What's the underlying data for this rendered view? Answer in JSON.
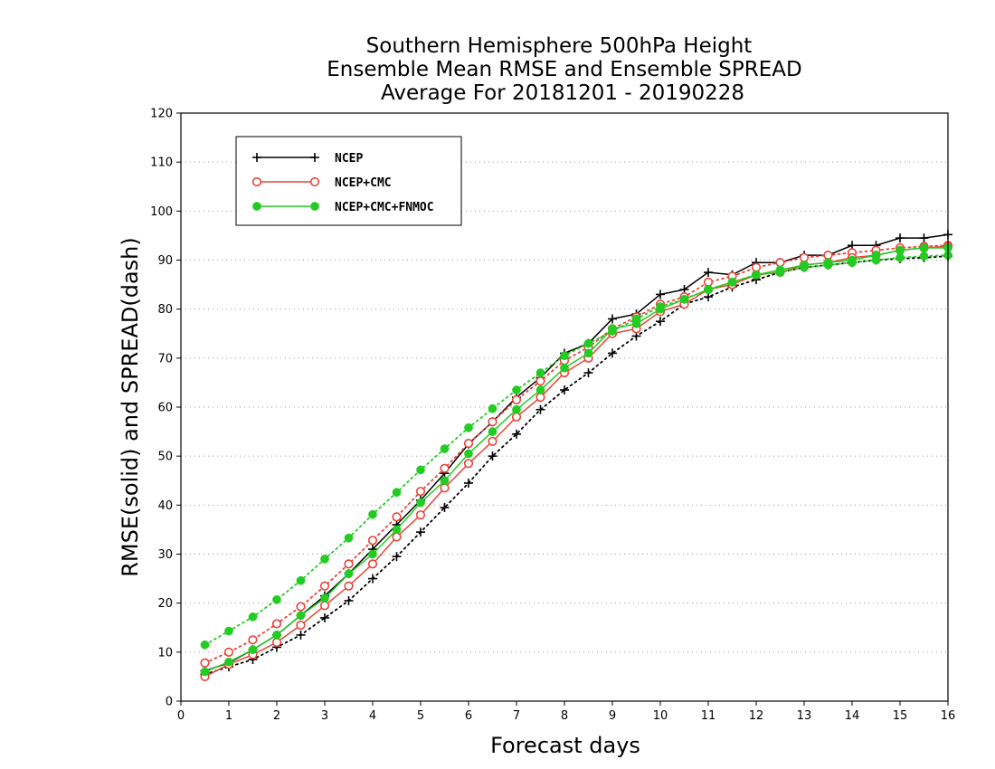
{
  "chart_data": {
    "type": "line",
    "title": [
      "Southern Hemisphere 500hPa Height",
      "Ensemble Mean RMSE and Ensemble SPREAD",
      "Average For 20181201 - 20190228"
    ],
    "xlabel": "Forecast days",
    "ylabel": "RMSE(solid) and SPREAD(dash)",
    "xlim": [
      0,
      16
    ],
    "ylim": [
      0,
      120
    ],
    "xticks": [
      "0",
      "1",
      "2",
      "3",
      "4",
      "5",
      "6",
      "7",
      "8",
      "9",
      "10",
      "11",
      "12",
      "13",
      "14",
      "15",
      "16"
    ],
    "yticks": [
      "0",
      "10",
      "20",
      "30",
      "40",
      "50",
      "60",
      "70",
      "80",
      "90",
      "100",
      "110",
      "120"
    ],
    "grid": true,
    "legend_position": "top-left",
    "x": [
      0.5,
      1,
      1.5,
      2,
      2.5,
      3,
      3.5,
      4,
      4.5,
      5,
      5.5,
      6,
      6.5,
      7,
      7.5,
      8,
      8.5,
      9,
      9.5,
      10,
      10.5,
      11,
      11.5,
      12,
      12.5,
      13,
      13.5,
      14,
      14.5,
      15,
      15.5,
      16
    ],
    "series": [
      {
        "name": "NCEP",
        "color": "#000000",
        "marker": "plus",
        "rmse": [
          6.2,
          7.8,
          10.5,
          13.5,
          17.5,
          21.5,
          26.0,
          31.0,
          36.0,
          41.0,
          46.5,
          52.5,
          57.0,
          62.0,
          66.0,
          71.0,
          73.0,
          78.0,
          79.0,
          83.0,
          84.0,
          87.5,
          87.0,
          89.5,
          89.5,
          91.0,
          91.0,
          93.0,
          93.0,
          94.5,
          94.5,
          95.2
        ],
        "spread": [
          5.5,
          7.0,
          8.5,
          11.0,
          13.5,
          17.0,
          20.5,
          25.0,
          29.5,
          34.5,
          39.5,
          44.5,
          50.0,
          54.5,
          59.5,
          63.5,
          67.0,
          71.0,
          74.5,
          77.5,
          81.0,
          82.5,
          84.5,
          86.0,
          87.5,
          88.5,
          89.0,
          89.5,
          90.0,
          90.3,
          90.5,
          90.8
        ]
      },
      {
        "name": "NCEP+CMC",
        "color": "#e8443a",
        "marker": "circle-open",
        "rmse": [
          5.0,
          7.5,
          9.5,
          12.0,
          15.5,
          19.5,
          23.5,
          28.0,
          33.5,
          38.0,
          43.5,
          48.5,
          53.0,
          58.0,
          62.0,
          67.0,
          70.0,
          75.0,
          76.0,
          79.5,
          81.0,
          84.0,
          85.0,
          87.0,
          87.5,
          89.0,
          89.5,
          90.5,
          91.0,
          92.0,
          92.5,
          92.8
        ],
        "spread": [
          7.8,
          10.0,
          12.5,
          15.8,
          19.3,
          23.5,
          28.0,
          32.8,
          37.6,
          42.8,
          47.5,
          52.6,
          57.0,
          61.5,
          65.3,
          69.5,
          72.2,
          76.0,
          78.4,
          81.0,
          82.5,
          85.5,
          86.7,
          88.5,
          89.5,
          90.5,
          91.0,
          91.5,
          92.0,
          92.5,
          92.8,
          93.0
        ]
      },
      {
        "name": "NCEP+CMC+FNMOC",
        "color": "#22cc22",
        "marker": "circle-filled",
        "rmse": [
          6.0,
          8.0,
          10.5,
          13.5,
          17.5,
          21.0,
          26.0,
          30.0,
          35.0,
          40.5,
          45.0,
          50.5,
          55.0,
          59.5,
          63.5,
          68.0,
          71.0,
          76.0,
          77.0,
          80.0,
          82.0,
          84.0,
          85.5,
          87.0,
          88.0,
          89.0,
          89.5,
          90.0,
          91.0,
          92.0,
          92.5,
          92.5
        ],
        "spread": [
          11.5,
          14.3,
          17.2,
          20.7,
          24.6,
          29.0,
          33.3,
          38.1,
          42.6,
          47.2,
          51.5,
          55.8,
          59.7,
          63.5,
          67.0,
          70.5,
          73.0,
          75.5,
          78.0,
          80.5,
          82.0,
          84.0,
          85.5,
          87.0,
          87.5,
          88.5,
          89.0,
          89.5,
          90.0,
          90.5,
          90.8,
          91.0
        ]
      }
    ]
  }
}
